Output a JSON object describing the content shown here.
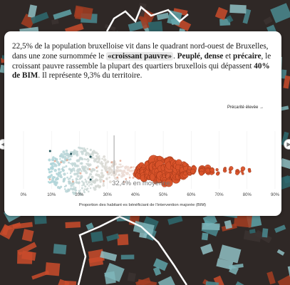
{
  "story": {
    "p1": "22,5% de la population bruxelloise vit dans le quadrant nord-ouest de Bruxelles, dans une zone surnommée le ",
    "highlight": "«croissant pauvre»",
    "p2": ". ",
    "b1": "Peuplé, dense",
    "p3": " et ",
    "b2": "précaire",
    "p4": ", le croissant pauvre rassemble la plupart des quartiers bruxellois qui dépassent ",
    "b3": "40% de BIM",
    "p5": ". Il représente 9,3% du territoire."
  },
  "nav": {
    "prev_icon": "chevron-left-icon",
    "next_icon": "chevron-right-icon"
  },
  "colors": {
    "low": "#a9d3d8",
    "mid": "#f3dcd2",
    "high": "#d9532a",
    "dark": "#1f4f55"
  },
  "chart_data": {
    "type": "scatter",
    "subtype": "beeswarm",
    "title": "",
    "xlabel": "Proportion des habitant·es bénéficiant de l’intervention majorée (BIM)",
    "ylabel": "",
    "xlim": [
      0,
      90
    ],
    "x_ticks": [
      "0%",
      "10%",
      "20%",
      "30%",
      "40%",
      "50%",
      "60%",
      "70%",
      "80%",
      "90%"
    ],
    "grid": true,
    "annotation_right": "Précarité élevée →",
    "mean_value": 32.4,
    "mean_label": "32,4% en moyenne",
    "highlight_threshold": 40,
    "points": [
      {
        "x": 40.6,
        "size": 4
      },
      {
        "x": 41.5,
        "size": 5
      },
      {
        "x": 42.3,
        "size": 3
      },
      {
        "x": 43.1,
        "size": 6
      },
      {
        "x": 44.0,
        "size": 4
      },
      {
        "x": 44.8,
        "size": 5
      },
      {
        "x": 45.6,
        "size": 3
      },
      {
        "x": 46.4,
        "size": 7
      },
      {
        "x": 47.2,
        "size": 4
      },
      {
        "x": 48.1,
        "size": 5
      },
      {
        "x": 48.9,
        "size": 6
      },
      {
        "x": 49.7,
        "size": 3
      },
      {
        "x": 50.5,
        "size": 5
      },
      {
        "x": 51.4,
        "size": 4
      },
      {
        "x": 52.2,
        "size": 7
      },
      {
        "x": 53.0,
        "size": 3
      },
      {
        "x": 53.8,
        "size": 5
      },
      {
        "x": 54.7,
        "size": 6
      },
      {
        "x": 55.5,
        "size": 4
      },
      {
        "x": 56.3,
        "size": 3
      },
      {
        "x": 57.1,
        "size": 5
      },
      {
        "x": 58.0,
        "size": 4
      },
      {
        "x": 59.4,
        "size": 3
      },
      {
        "x": 60.8,
        "size": 3
      },
      {
        "x": 63.9,
        "size": 5
      },
      {
        "x": 66.0,
        "size": 4
      },
      {
        "x": 67.5,
        "size": 3
      },
      {
        "x": 69.5,
        "size": 2
      },
      {
        "x": 72.0,
        "size": 2
      },
      {
        "x": 74.2,
        "size": 2
      },
      {
        "x": 76.5,
        "size": 2
      },
      {
        "x": 78.3,
        "size": 2
      },
      {
        "x": 81.0,
        "size": 2
      },
      {
        "x": 39.4,
        "size": 3
      },
      {
        "x": 38.6,
        "size": 2
      },
      {
        "x": 37.9,
        "size": 4
      },
      {
        "x": 36.8,
        "size": 2
      },
      {
        "x": 36.0,
        "size": 3
      },
      {
        "x": 34.8,
        "size": 2
      },
      {
        "x": 33.5,
        "size": 2
      },
      {
        "x": 31.8,
        "size": 1
      },
      {
        "x": 30.2,
        "size": 1
      },
      {
        "x": 28.4,
        "size": 1
      },
      {
        "x": 26.1,
        "size": 1
      },
      {
        "x": 23.7,
        "size": 1
      },
      {
        "x": 20.5,
        "size": 1
      },
      {
        "x": 17.8,
        "size": 1
      },
      {
        "x": 15.4,
        "size": 1
      },
      {
        "x": 13.6,
        "size": 1
      },
      {
        "x": 11.2,
        "size": 1
      },
      {
        "x": 9.3,
        "size": 1
      }
    ]
  }
}
